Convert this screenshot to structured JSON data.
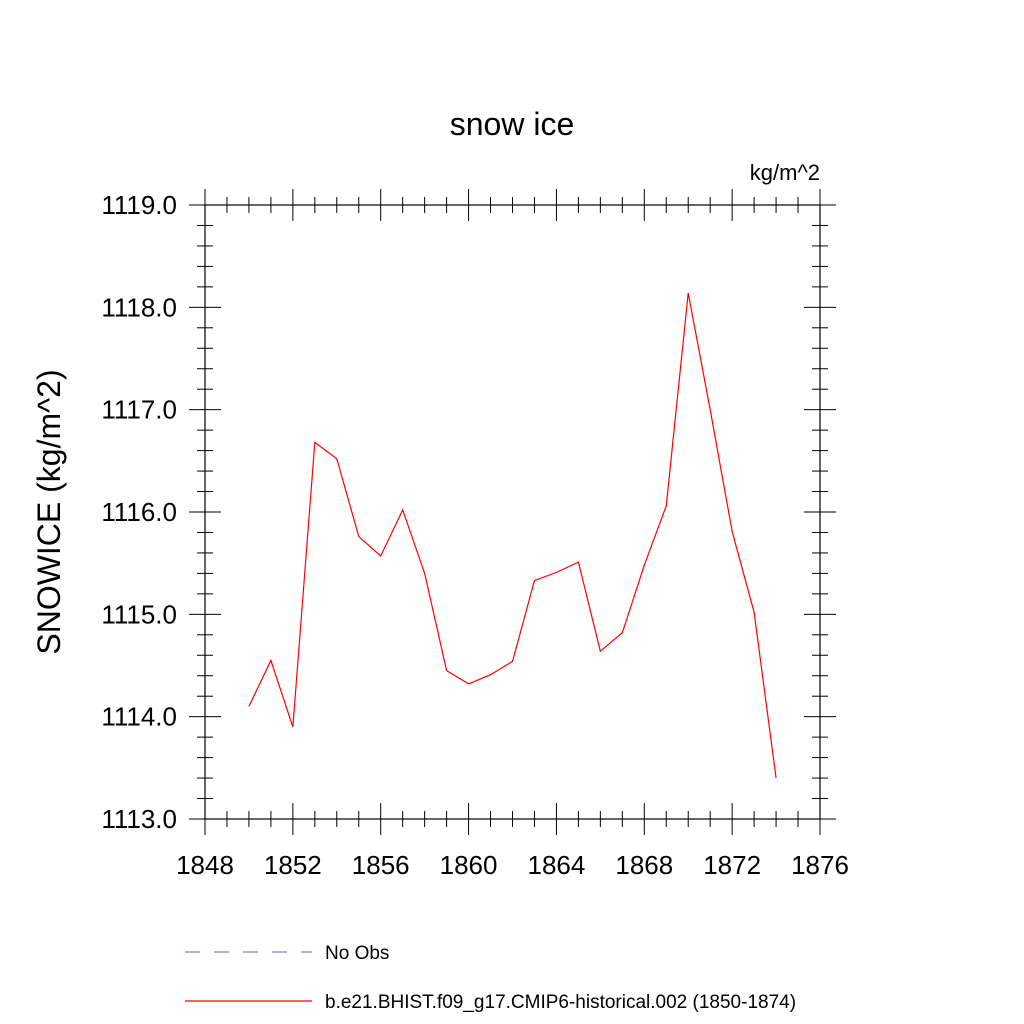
{
  "chart_data": {
    "type": "line",
    "title": "snow ice",
    "units": "kg/m^2",
    "ylabel": "SNOWICE  (kg/m^2)",
    "xlabel": "",
    "xlim": [
      1848,
      1876
    ],
    "ylim": [
      1113.0,
      1119.0
    ],
    "x_ticks": [
      "1848",
      "1852",
      "1856",
      "1860",
      "1864",
      "1868",
      "1872",
      "1876"
    ],
    "y_ticks": [
      "1113.0",
      "1114.0",
      "1115.0",
      "1116.0",
      "1117.0",
      "1118.0",
      "1119.0"
    ],
    "grid": false,
    "legend_position": "bottom",
    "series": [
      {
        "name": "No Obs",
        "color": "#7f7fbf",
        "style": "dashed",
        "x": [],
        "values": []
      },
      {
        "name": "b.e21.BHIST.f09_g17.CMIP6-historical.002 (1850-1874)",
        "color": "#ff0000",
        "style": "solid",
        "x": [
          1850,
          1851,
          1852,
          1853,
          1854,
          1855,
          1856,
          1857,
          1858,
          1859,
          1860,
          1861,
          1862,
          1863,
          1864,
          1865,
          1866,
          1867,
          1868,
          1869,
          1870,
          1871,
          1872,
          1873,
          1874
        ],
        "values": [
          1114.1,
          1114.55,
          1113.9,
          1116.68,
          1116.52,
          1115.76,
          1115.57,
          1116.02,
          1115.4,
          1114.45,
          1114.32,
          1114.41,
          1114.54,
          1115.33,
          1115.41,
          1115.51,
          1114.64,
          1114.82,
          1115.48,
          1116.06,
          1118.14,
          1117.0,
          1115.81,
          1115.02,
          1113.4
        ]
      }
    ]
  }
}
